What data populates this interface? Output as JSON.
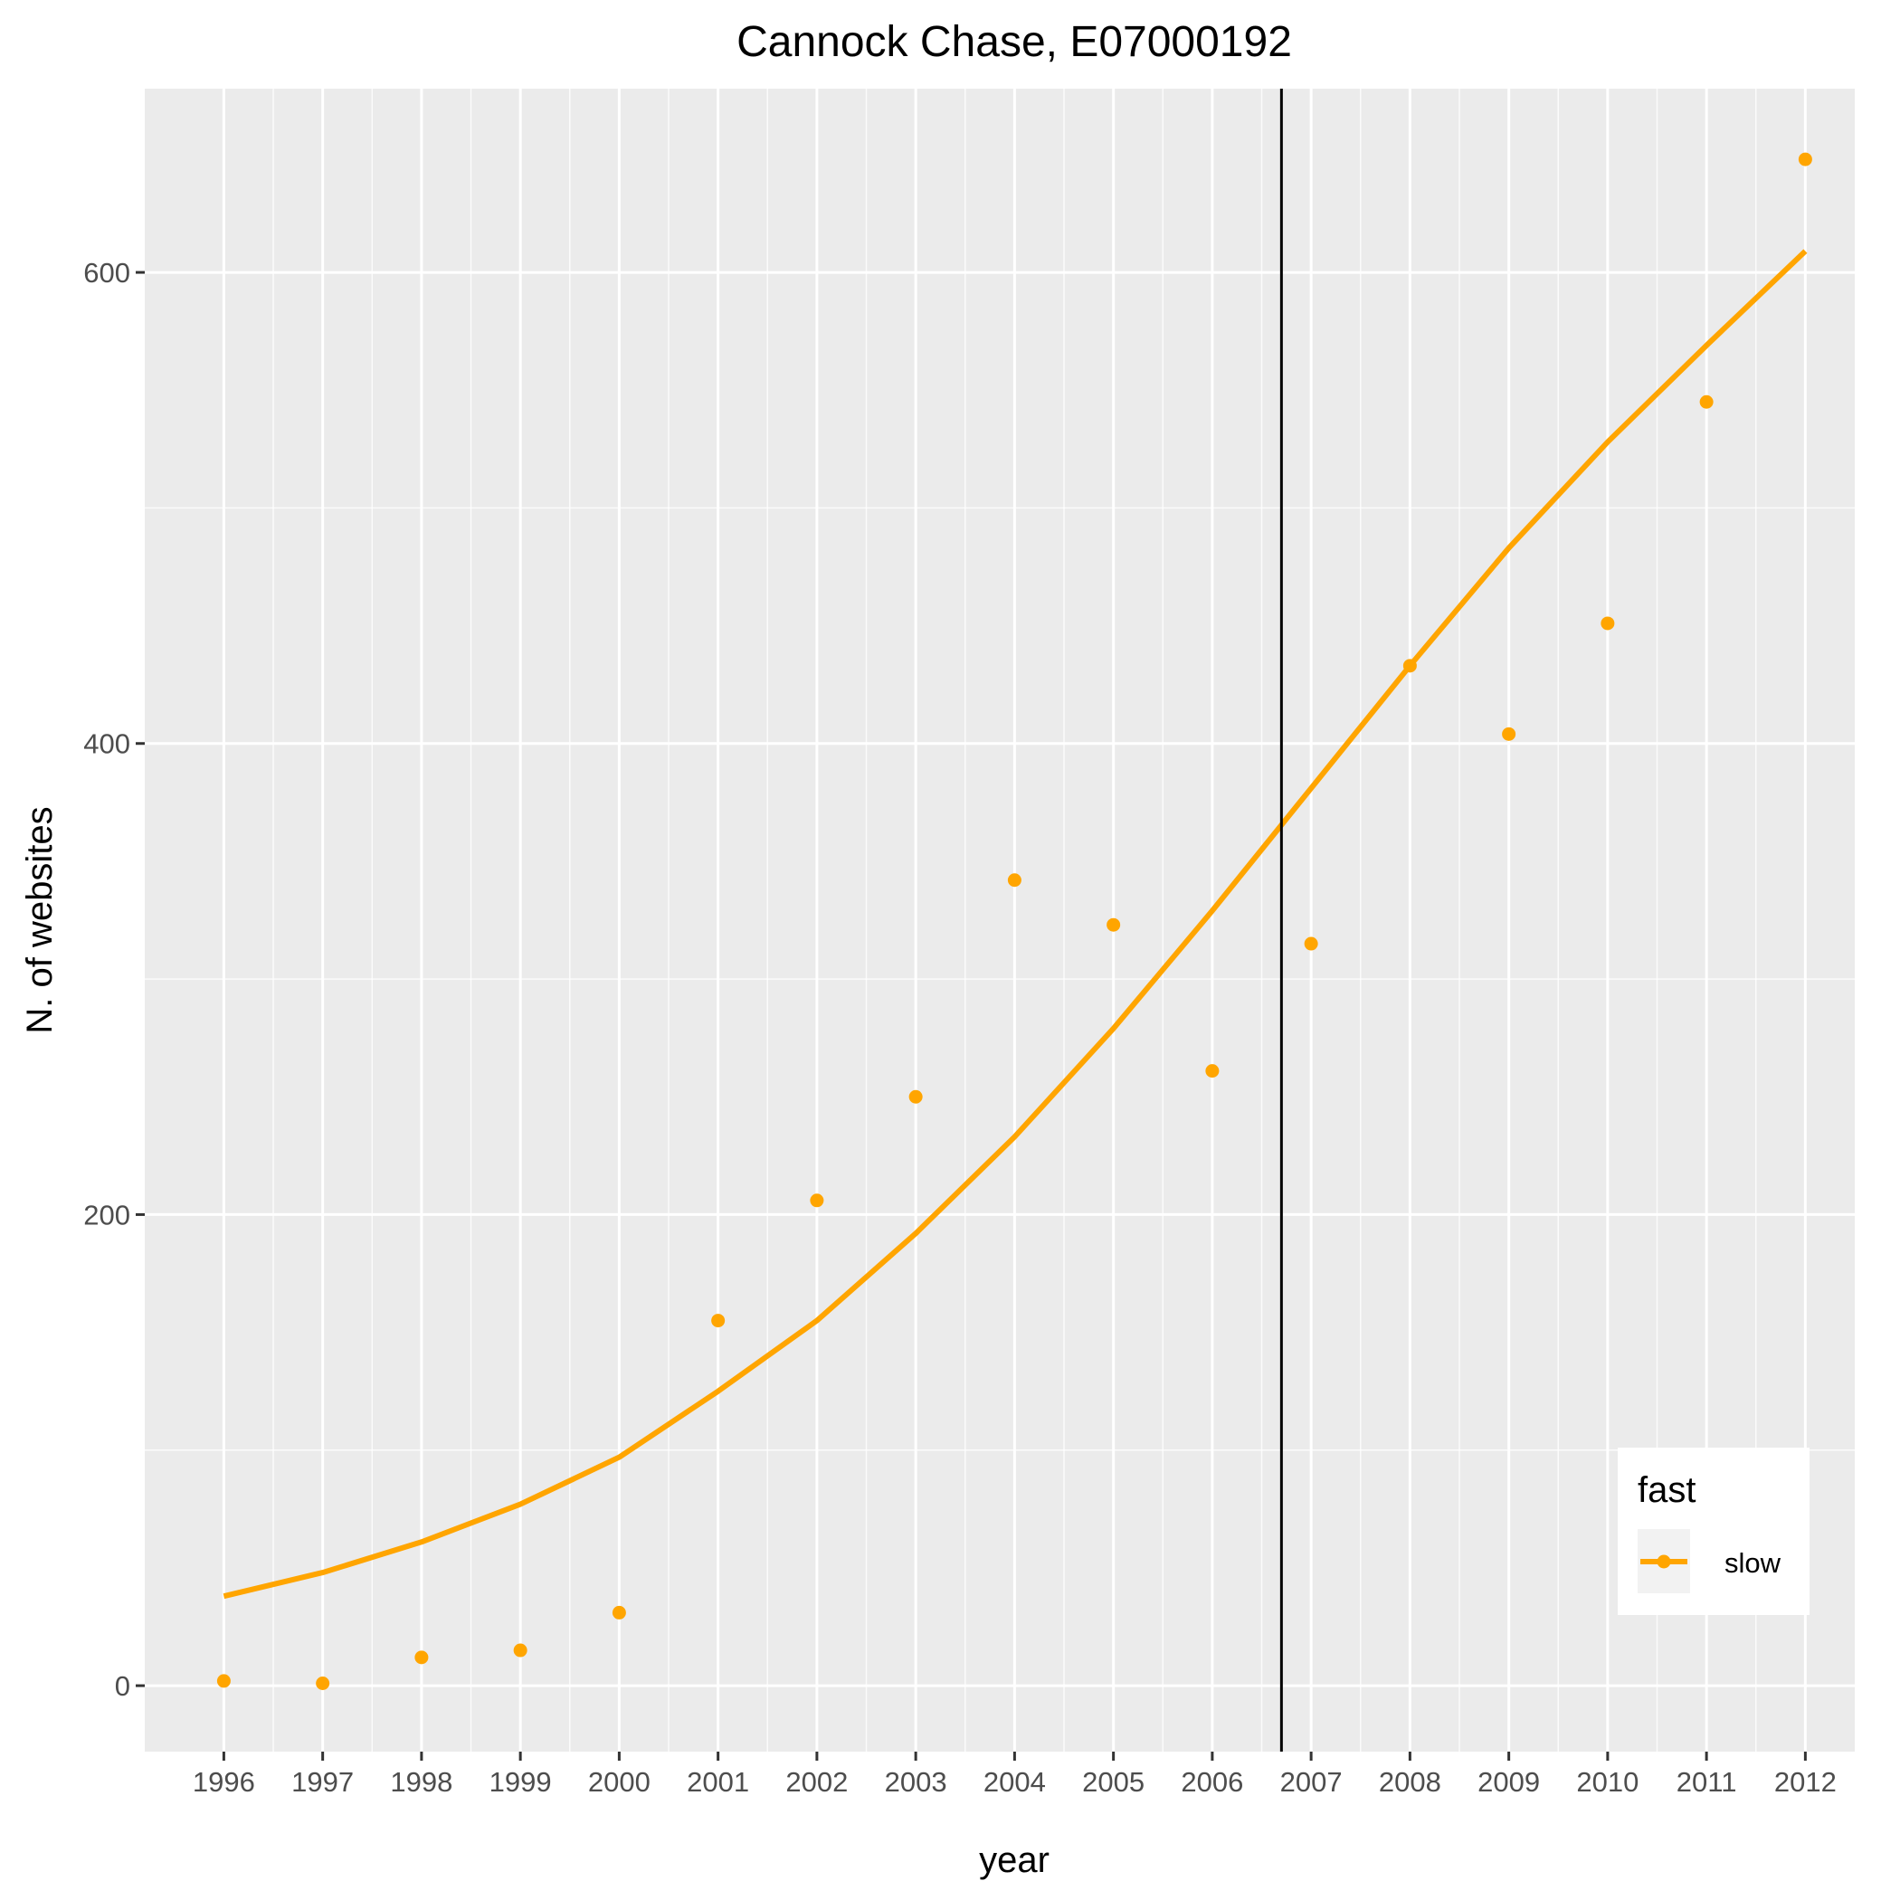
{
  "chart_data": {
    "type": "scatter",
    "title": "Cannock Chase, E07000192",
    "xlabel": "year",
    "ylabel": "N. of websites",
    "x": [
      1996,
      1997,
      1998,
      1999,
      2000,
      2001,
      2002,
      2003,
      2004,
      2005,
      2006,
      2007,
      2008,
      2009,
      2010,
      2011,
      2012
    ],
    "x_tick_labels": [
      "1996",
      "1997",
      "1998",
      "1999",
      "2000",
      "2001",
      "2002",
      "2003",
      "2004",
      "2005",
      "2006",
      "2007",
      "2008",
      "2009",
      "2010",
      "2011",
      "2012"
    ],
    "y_ticks": [
      0,
      200,
      400,
      600
    ],
    "y_tick_labels": [
      "0",
      "200",
      "400",
      "600"
    ],
    "xlim": [
      1995.2,
      2012.5
    ],
    "ylim": [
      -28,
      678
    ],
    "grid": true,
    "vertical_line_x": 2006.7,
    "series": [
      {
        "name": "slow",
        "color": "#FFA500",
        "points": [
          2,
          1,
          12,
          15,
          31,
          155,
          206,
          250,
          342,
          323,
          261,
          315,
          433,
          404,
          451,
          545,
          648
        ],
        "smooth": [
          38,
          48,
          61,
          77,
          97,
          125,
          155,
          192,
          233,
          279,
          329,
          381,
          433,
          483,
          528,
          569,
          609
        ]
      }
    ],
    "legend": {
      "title": "fast",
      "position": "bottom-right",
      "entries": [
        "slow"
      ]
    }
  }
}
